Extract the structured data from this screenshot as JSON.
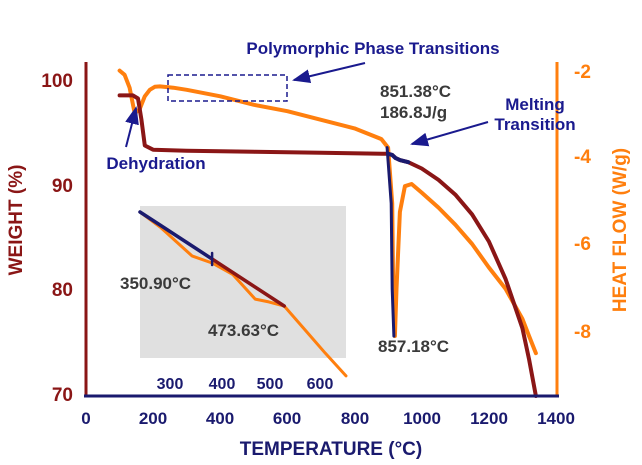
{
  "chart_data": {
    "type": "line",
    "xlabel": "TEMPERATURE (°C)",
    "ylabel_left": "WEIGHT (%)",
    "ylabel_right": "HEAT FLOW (W/g)",
    "xlim": [
      0,
      1400
    ],
    "ylim_left": [
      70,
      102
    ],
    "ylim_right": [
      -9.5,
      -1.7
    ],
    "x_ticks": [
      "0",
      "200",
      "400",
      "600",
      "800",
      "1000",
      "1200",
      "1400"
    ],
    "y_ticks_left": [
      "70",
      "80",
      "90",
      "100"
    ],
    "y_ticks_right": [
      "-2",
      "-4",
      "-6",
      "-8"
    ],
    "grid": false,
    "colors": {
      "weight_axis": "#8a1616",
      "heatflow_axis": "#ff7f0e",
      "weight_curve": "#8a1616",
      "weight_curve_highlight": "#1a1a6e",
      "heatflow_curve": "#ff7f0e",
      "annotation": "#1a1a8e",
      "inset_bg": "#e0e0e0"
    },
    "series": [
      {
        "axis": "left",
        "x": [
          100,
          140,
          155,
          165,
          175,
          200,
          300,
          500,
          700,
          900,
          912,
          922,
          935,
          960,
          1000,
          1050,
          1100,
          1150,
          1200,
          1250,
          1300,
          1320,
          1340
        ],
        "y": [
          98.8,
          98.8,
          98.5,
          96.5,
          94.0,
          93.6,
          93.5,
          93.4,
          93.3,
          93.2,
          93.1,
          92.8,
          92.6,
          92.4,
          91.8,
          90.7,
          89.3,
          87.4,
          84.8,
          81.2,
          76.5,
          73.5,
          70.0
        ]
      },
      {
        "axis": "right",
        "x": [
          100,
          115,
          130,
          145,
          160,
          175,
          190,
          205,
          220,
          260,
          300,
          400,
          500,
          600,
          700,
          800,
          880,
          900,
          912,
          915,
          920,
          925,
          935,
          950,
          970,
          1000,
          1050,
          1100,
          1150,
          1200,
          1250,
          1300,
          1320,
          1340
        ],
        "y": [
          -1.9,
          -2.0,
          -2.3,
          -2.9,
          -2.8,
          -2.5,
          -2.35,
          -2.28,
          -2.27,
          -2.3,
          -2.35,
          -2.5,
          -2.7,
          -2.85,
          -3.05,
          -3.25,
          -3.5,
          -3.7,
          -5.0,
          -7.0,
          -8.1,
          -7.0,
          -5.2,
          -4.6,
          -4.55,
          -4.75,
          -5.1,
          -5.5,
          -5.95,
          -6.5,
          -7.0,
          -7.7,
          -8.1,
          -8.5
        ]
      }
    ],
    "inset": {
      "xlim": [
        250,
        650
      ],
      "x_ticks": [
        "300",
        "400",
        "500",
        "600"
      ],
      "weight_x": [
        250,
        290,
        350.9,
        390,
        473.63,
        530
      ],
      "heatflow_x": [
        250,
        290,
        320,
        350.9,
        390,
        430,
        473.63,
        500,
        530,
        570,
        610,
        650
      ]
    },
    "annotations": {
      "polymorphic": "Polymorphic Phase Transitions",
      "dehydration": "Dehydration",
      "melt_temp": "851.38°C",
      "melt_enthalpy": "186.8J/g",
      "melting_line1": "Melting",
      "melting_line2": "Transition",
      "peak": "857.18°C",
      "inset_label1": "350.90°C",
      "inset_label2": "473.63°C"
    }
  }
}
